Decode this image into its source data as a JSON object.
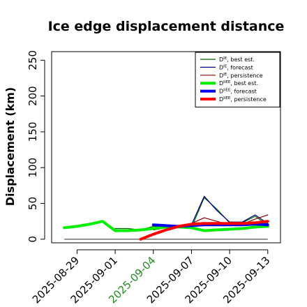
{
  "chart_data": {
    "type": "line",
    "title": "Ice edge displacement distance",
    "xlabel": "",
    "ylabel": "Displacement (km)",
    "x_ticks": [
      "2025-08-29",
      "2025-09-01",
      "2025-09-04",
      "2025-09-07",
      "2025-09-10",
      "2025-09-13"
    ],
    "highlight_tick": "2025-09-04",
    "highlight_color": "#228B22",
    "ylim": [
      -5,
      262
    ],
    "yticks": [
      0,
      50,
      100,
      150,
      200,
      250
    ],
    "xlim": [
      "2025-08-27",
      "2025-09-14"
    ],
    "grid": false,
    "legend_position": "top-right",
    "zero_line_color": "#555555",
    "series": [
      {
        "name": "D^IE, best est.",
        "legend": {
          "main": "D",
          "sup": "IE",
          "rest": ", best est."
        },
        "color": "#006400",
        "width": 1.2,
        "points": [
          [
            "2025-09-01",
            15
          ],
          [
            "2025-09-02",
            15
          ],
          [
            "2025-09-03",
            13
          ],
          [
            "2025-09-04",
            18
          ],
          [
            "2025-09-05",
            17
          ],
          [
            "2025-09-06",
            18
          ],
          [
            "2025-09-07",
            16
          ],
          [
            "2025-09-08",
            58
          ],
          [
            "2025-09-09",
            42
          ],
          [
            "2025-09-10",
            23
          ],
          [
            "2025-09-11",
            23
          ],
          [
            "2025-09-12",
            32
          ],
          [
            "2025-09-13",
            20
          ]
        ]
      },
      {
        "name": "D^IE, forecast",
        "legend": {
          "main": "D",
          "sup": "IE",
          "rest": ", forecast"
        },
        "color": "#00008B",
        "width": 1.2,
        "points": [
          [
            "2025-09-04",
            19
          ],
          [
            "2025-09-05",
            18
          ],
          [
            "2025-09-06",
            19
          ],
          [
            "2025-09-07",
            20
          ],
          [
            "2025-09-08",
            60
          ],
          [
            "2025-09-09",
            40
          ],
          [
            "2025-09-10",
            24
          ],
          [
            "2025-09-11",
            24
          ],
          [
            "2025-09-12",
            34
          ],
          [
            "2025-09-13",
            22
          ]
        ]
      },
      {
        "name": "D^IE, persistence",
        "legend": {
          "main": "D",
          "sup": "IE",
          "rest": ", persistence"
        },
        "color": "#8B0000",
        "width": 1.2,
        "points": [
          [
            "2025-09-04",
            13
          ],
          [
            "2025-09-05",
            16
          ],
          [
            "2025-09-06",
            19
          ],
          [
            "2025-09-07",
            22
          ],
          [
            "2025-09-08",
            30
          ],
          [
            "2025-09-09",
            25
          ],
          [
            "2025-09-10",
            20
          ],
          [
            "2025-09-11",
            21
          ],
          [
            "2025-09-12",
            28
          ],
          [
            "2025-09-13",
            34
          ]
        ]
      },
      {
        "name": "D^IIEE, best est.",
        "legend": {
          "main": "D",
          "sup": "IIEE",
          "rest": ", best est."
        },
        "color": "#00EE00",
        "width": 4,
        "points": [
          [
            "2025-08-28",
            16
          ],
          [
            "2025-08-29",
            18
          ],
          [
            "2025-08-30",
            21
          ],
          [
            "2025-08-31",
            25
          ],
          [
            "2025-09-01",
            12
          ],
          [
            "2025-09-02",
            12
          ],
          [
            "2025-09-03",
            13
          ],
          [
            "2025-09-04",
            15
          ],
          [
            "2025-09-05",
            17
          ],
          [
            "2025-09-06",
            17
          ],
          [
            "2025-09-07",
            16
          ],
          [
            "2025-09-08",
            12
          ],
          [
            "2025-09-09",
            13
          ],
          [
            "2025-09-10",
            14
          ],
          [
            "2025-09-11",
            15
          ],
          [
            "2025-09-12",
            17
          ],
          [
            "2025-09-13",
            18
          ]
        ]
      },
      {
        "name": "D^IIEE, forecast",
        "legend": {
          "main": "D",
          "sup": "IIEE",
          "rest": ", forecast"
        },
        "color": "#0000EE",
        "width": 4,
        "points": [
          [
            "2025-09-04",
            20
          ],
          [
            "2025-09-05",
            19
          ],
          [
            "2025-09-06",
            18
          ],
          [
            "2025-09-07",
            19
          ],
          [
            "2025-09-08",
            20
          ],
          [
            "2025-09-09",
            20
          ],
          [
            "2025-09-10",
            20
          ],
          [
            "2025-09-11",
            20
          ],
          [
            "2025-09-12",
            21
          ],
          [
            "2025-09-13",
            20
          ]
        ]
      },
      {
        "name": "D^IIEE, persistence",
        "legend": {
          "main": "D",
          "sup": "IIEE",
          "rest": ", persistence"
        },
        "color": "#FF0000",
        "width": 4,
        "points": [
          [
            "2025-09-03",
            0
          ],
          [
            "2025-09-04",
            7
          ],
          [
            "2025-09-05",
            13
          ],
          [
            "2025-09-06",
            18
          ],
          [
            "2025-09-07",
            21
          ],
          [
            "2025-09-08",
            22
          ],
          [
            "2025-09-09",
            22
          ],
          [
            "2025-09-10",
            22
          ],
          [
            "2025-09-11",
            22
          ],
          [
            "2025-09-12",
            23
          ],
          [
            "2025-09-13",
            25
          ]
        ]
      }
    ]
  }
}
